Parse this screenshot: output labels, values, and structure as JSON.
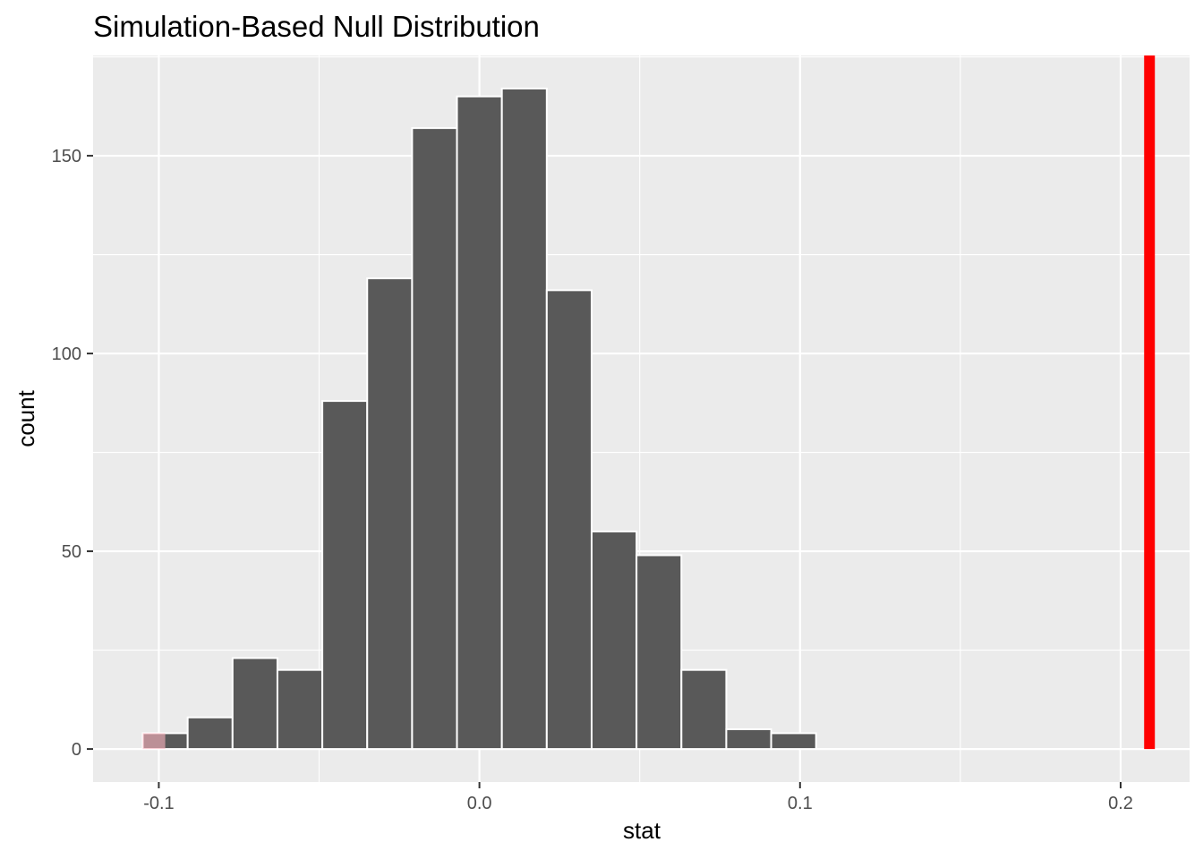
{
  "chart_data": {
    "type": "bar",
    "title": "Simulation-Based Null Distribution",
    "xlabel": "stat",
    "ylabel": "count",
    "xlim": [
      -0.1205,
      0.2215
    ],
    "ylim": [
      -8.35,
      175.35
    ],
    "x_ticks": [
      -0.1,
      0.0,
      0.1,
      0.2
    ],
    "x_tick_labels": [
      "-0.1",
      "0.0",
      "0.1",
      "0.2"
    ],
    "y_ticks": [
      0,
      50,
      100,
      150
    ],
    "y_tick_labels": [
      "0",
      "50",
      "100",
      "150"
    ],
    "grid": true,
    "bin_width": 0.014,
    "bins": [
      {
        "x_start": -0.105,
        "x_end": -0.091,
        "count": 4
      },
      {
        "x_start": -0.091,
        "x_end": -0.077,
        "count": 8
      },
      {
        "x_start": -0.077,
        "x_end": -0.063,
        "count": 23
      },
      {
        "x_start": -0.063,
        "x_end": -0.049,
        "count": 20
      },
      {
        "x_start": -0.049,
        "x_end": -0.035,
        "count": 88
      },
      {
        "x_start": -0.035,
        "x_end": -0.021,
        "count": 119
      },
      {
        "x_start": -0.021,
        "x_end": -0.007,
        "count": 157
      },
      {
        "x_start": -0.007,
        "x_end": 0.007,
        "count": 165
      },
      {
        "x_start": 0.007,
        "x_end": 0.021,
        "count": 167
      },
      {
        "x_start": 0.021,
        "x_end": 0.035,
        "count": 116
      },
      {
        "x_start": 0.035,
        "x_end": 0.049,
        "count": 55
      },
      {
        "x_start": 0.049,
        "x_end": 0.063,
        "count": 49
      },
      {
        "x_start": 0.063,
        "x_end": 0.077,
        "count": 20
      },
      {
        "x_start": 0.077,
        "x_end": 0.091,
        "count": 5
      },
      {
        "x_start": 0.091,
        "x_end": 0.105,
        "count": 4
      },
      {
        "x_start": 0.105,
        "x_end": 0.119,
        "count": 0
      },
      {
        "x_start": 0.119,
        "x_end": 0.133,
        "count": 0
      },
      {
        "x_start": 0.133,
        "x_end": 0.147,
        "count": 0
      },
      {
        "x_start": 0.147,
        "x_end": 0.161,
        "count": 0
      },
      {
        "x_start": 0.161,
        "x_end": 0.175,
        "count": 0
      },
      {
        "x_start": 0.175,
        "x_end": 0.189,
        "count": 0
      },
      {
        "x_start": 0.189,
        "x_end": 0.203,
        "count": 0
      },
      {
        "x_start": 0.203,
        "x_end": 0.217,
        "count": 0
      }
    ],
    "shaded_region": {
      "x_start": -0.105,
      "x_end": -0.098,
      "count": 4,
      "color": "#ffb6c1"
    },
    "observed_stat": {
      "x": 0.209,
      "color": "#ff0000"
    },
    "colors": {
      "bar_fill": "#595959",
      "bar_outline": "#ffffff",
      "panel_background": "#ebebeb",
      "grid": "#ffffff"
    }
  }
}
